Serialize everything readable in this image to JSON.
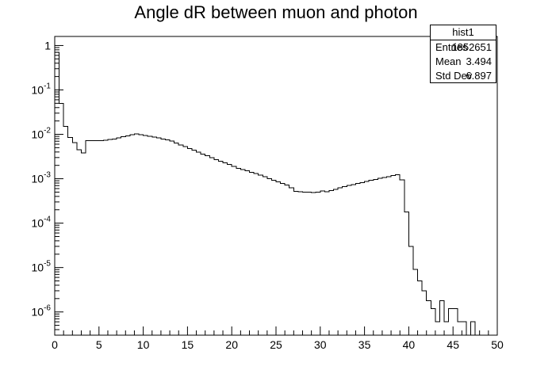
{
  "chart_data": {
    "type": "histogram",
    "title": "Angle dR between muon and photon",
    "xlim": [
      0,
      50
    ],
    "ylim": [
      3e-07,
      1.6
    ],
    "yscale": "log",
    "bin_width": 0.5,
    "x_ticks": [
      0,
      5,
      10,
      15,
      20,
      25,
      30,
      35,
      40,
      45,
      50
    ],
    "y_ticks": [
      {
        "value": 1,
        "label": "1"
      },
      {
        "value": 0.1,
        "label": "10^-1"
      },
      {
        "value": 0.01,
        "label": "10^-2"
      },
      {
        "value": 0.001,
        "label": "10^-3"
      },
      {
        "value": 0.0001,
        "label": "10^-4"
      },
      {
        "value": 1e-05,
        "label": "10^-5"
      },
      {
        "value": 1e-06,
        "label": "10^-6"
      }
    ],
    "bins": [
      [
        0.0,
        0.7
      ],
      [
        0.5,
        0.05
      ],
      [
        1.0,
        0.015
      ],
      [
        1.5,
        0.0085
      ],
      [
        2.0,
        0.0065
      ],
      [
        2.5,
        0.0045
      ],
      [
        3.0,
        0.0038
      ],
      [
        3.5,
        0.0072
      ],
      [
        4.0,
        0.0072
      ],
      [
        4.5,
        0.0072
      ],
      [
        5.0,
        0.0072
      ],
      [
        5.5,
        0.0074
      ],
      [
        6.0,
        0.0076
      ],
      [
        6.5,
        0.0079
      ],
      [
        7.0,
        0.0083
      ],
      [
        7.5,
        0.0088
      ],
      [
        8.0,
        0.0093
      ],
      [
        8.5,
        0.0098
      ],
      [
        9.0,
        0.0102
      ],
      [
        9.5,
        0.0098
      ],
      [
        10.0,
        0.0094
      ],
      [
        10.5,
        0.009
      ],
      [
        11.0,
        0.0086
      ],
      [
        11.5,
        0.0083
      ],
      [
        12.0,
        0.0079
      ],
      [
        12.5,
        0.0075
      ],
      [
        13.0,
        0.007
      ],
      [
        13.5,
        0.0064
      ],
      [
        14.0,
        0.0058
      ],
      [
        14.5,
        0.0053
      ],
      [
        15.0,
        0.0048
      ],
      [
        15.5,
        0.0044
      ],
      [
        16.0,
        0.004
      ],
      [
        16.5,
        0.0036
      ],
      [
        17.0,
        0.0033
      ],
      [
        17.5,
        0.003
      ],
      [
        18.0,
        0.0027
      ],
      [
        18.5,
        0.0025
      ],
      [
        19.0,
        0.0023
      ],
      [
        19.5,
        0.0021
      ],
      [
        20.0,
        0.0019
      ],
      [
        20.5,
        0.0017
      ],
      [
        21.0,
        0.0016
      ],
      [
        21.5,
        0.0015
      ],
      [
        22.0,
        0.0014
      ],
      [
        22.5,
        0.0013
      ],
      [
        23.0,
        0.0012
      ],
      [
        23.5,
        0.0011
      ],
      [
        24.0,
        0.001
      ],
      [
        24.5,
        0.00092
      ],
      [
        25.0,
        0.00085
      ],
      [
        25.5,
        0.00078
      ],
      [
        26.0,
        0.00072
      ],
      [
        26.5,
        0.00062
      ],
      [
        27.0,
        0.00052
      ],
      [
        27.5,
        0.00051
      ],
      [
        28.0,
        0.0005
      ],
      [
        28.5,
        0.0005
      ],
      [
        29.0,
        0.00049
      ],
      [
        29.5,
        0.0005
      ],
      [
        30.0,
        0.00053
      ],
      [
        30.5,
        0.00051
      ],
      [
        31.0,
        0.00054
      ],
      [
        31.5,
        0.00058
      ],
      [
        32.0,
        0.00062
      ],
      [
        32.5,
        0.00066
      ],
      [
        33.0,
        0.0007
      ],
      [
        33.5,
        0.00074
      ],
      [
        34.0,
        0.00078
      ],
      [
        34.5,
        0.00082
      ],
      [
        35.0,
        0.00087
      ],
      [
        35.5,
        0.00092
      ],
      [
        36.0,
        0.00097
      ],
      [
        36.5,
        0.00102
      ],
      [
        37.0,
        0.00107
      ],
      [
        37.5,
        0.00112
      ],
      [
        38.0,
        0.00117
      ],
      [
        38.5,
        0.00122
      ],
      [
        39.0,
        0.00095
      ],
      [
        39.5,
        0.00018
      ],
      [
        40.0,
        3e-05
      ],
      [
        40.5,
        9e-06
      ],
      [
        41.0,
        5e-06
      ],
      [
        41.5,
        3e-06
      ],
      [
        42.0,
        1.8e-06
      ],
      [
        42.5,
        1.2e-06
      ],
      [
        43.0,
        6e-07
      ],
      [
        43.5,
        1.8e-06
      ],
      [
        44.0,
        6e-07
      ],
      [
        44.5,
        1.2e-06
      ],
      [
        45.0,
        1.2e-06
      ],
      [
        45.5,
        6e-07
      ],
      [
        46.0,
        6e-07
      ],
      [
        46.5,
        0
      ],
      [
        47.0,
        6e-07
      ],
      [
        47.5,
        0
      ]
    ]
  },
  "stats": {
    "name": "hist1",
    "rows": [
      {
        "label": "Entries",
        "value": "1852651"
      },
      {
        "label": "Mean",
        "value": "3.494"
      },
      {
        "label": "Std Dev",
        "value": "6.897"
      }
    ]
  }
}
